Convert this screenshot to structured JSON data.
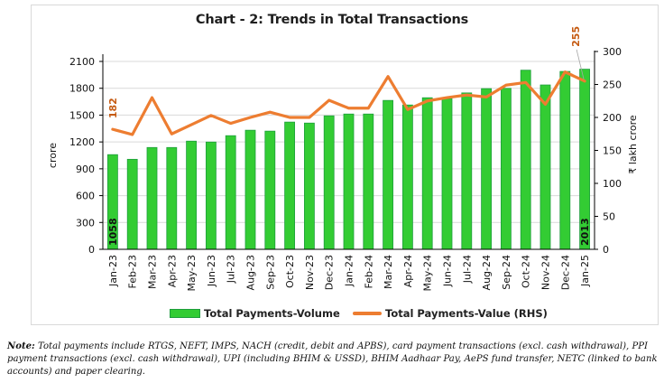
{
  "chart_data": {
    "type": "bar+line",
    "title": "Chart - 2: Trends in Total Transactions",
    "categories": [
      "Jan-23",
      "Feb-23",
      "Mar-23",
      "Apr-23",
      "May-23",
      "Jun-23",
      "Jul-23",
      "Aug-23",
      "Sep-23",
      "Oct-23",
      "Nov-23",
      "Dec-23",
      "Jan-24",
      "Feb-24",
      "Mar-24",
      "Apr-24",
      "May-24",
      "Jun-24",
      "Jul-24",
      "Aug-24",
      "Sep-24",
      "Oct-24",
      "Nov-24",
      "Dec-24",
      "Jan-25"
    ],
    "series": [
      {
        "name": "Total Payments-Volume",
        "type": "bar",
        "axis": "left",
        "color": "#33cc33",
        "edge_color": "#1e9e3c",
        "values": [
          1058,
          1006,
          1138,
          1138,
          1209,
          1199,
          1270,
          1331,
          1321,
          1422,
          1411,
          1492,
          1512,
          1512,
          1664,
          1613,
          1694,
          1684,
          1748,
          1796,
          1799,
          2002,
          1837,
          1988,
          2013
        ]
      },
      {
        "name": "Total Payments-Value (RHS)",
        "type": "line",
        "axis": "right",
        "color": "#ed7d31",
        "values": [
          182,
          174,
          230,
          175,
          189,
          203,
          191,
          200,
          208,
          200,
          200,
          226,
          214,
          214,
          262,
          212,
          225,
          230,
          234,
          231,
          249,
          253,
          220,
          269,
          255
        ]
      }
    ],
    "data_labels": [
      {
        "series": 0,
        "index": 0,
        "text": "1058"
      },
      {
        "series": 0,
        "index": 24,
        "text": "2013"
      },
      {
        "series": 1,
        "index": 0,
        "text": "182"
      },
      {
        "series": 1,
        "index": 24,
        "text": "255"
      }
    ],
    "left_axis": {
      "label": "crore",
      "min": 0,
      "max": 2100,
      "ticks": [
        0,
        300,
        600,
        900,
        1200,
        1500,
        1800,
        2100
      ]
    },
    "right_axis": {
      "label": "₹ lakh crore",
      "min": 0,
      "max": 300,
      "ticks": [
        0,
        50,
        100,
        150,
        200,
        250,
        300
      ]
    },
    "grid": true,
    "legend_position": "bottom"
  },
  "legend": {
    "bar_label": "Total Payments-Volume",
    "line_label": "Total Payments-Value (RHS)"
  },
  "note": {
    "prefix": "Note:",
    "text": " Total payments include RTGS, NEFT, IMPS, NACH (credit, debit and APBS), card payment transactions (excl. cash withdrawal), PPI payment transactions (excl. cash withdrawal), UPI (including BHIM & USSD), BHIM Aadhaar Pay, AePS fund transfer, NETC (linked to bank accounts) and paper clearing."
  }
}
